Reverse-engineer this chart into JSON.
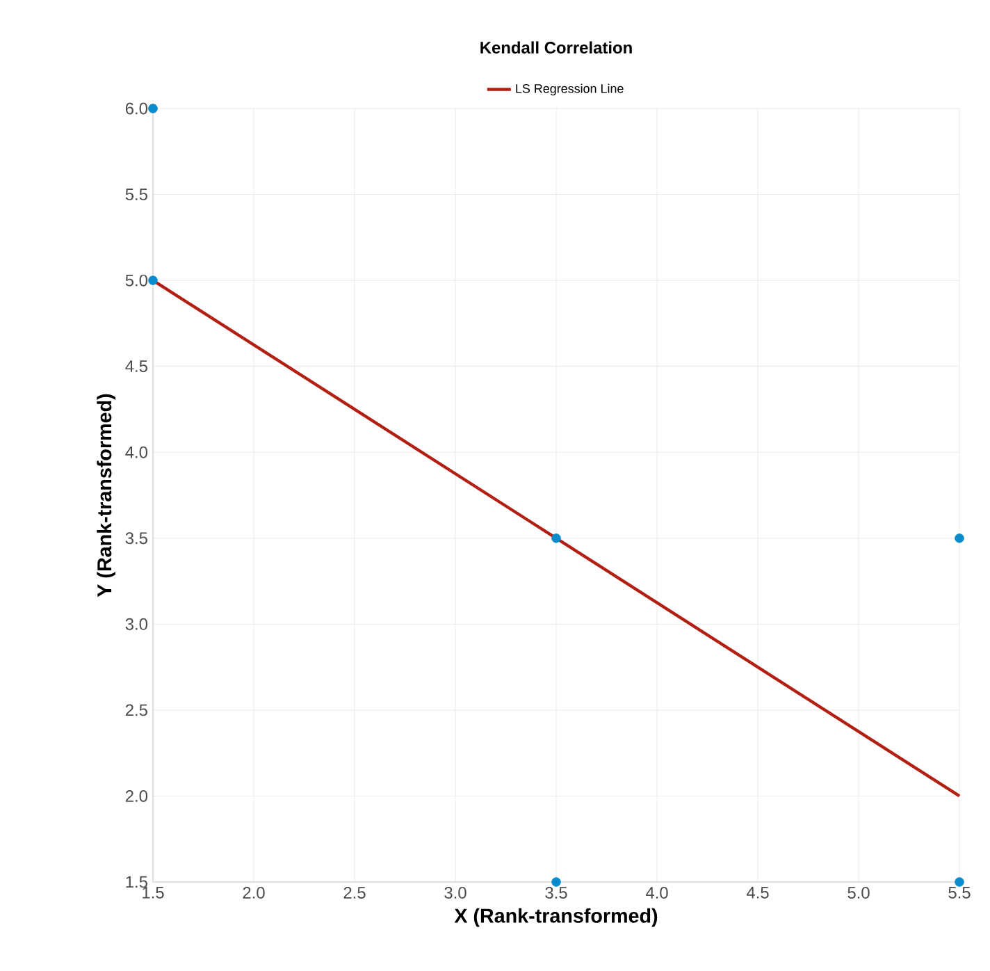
{
  "chart_data": {
    "type": "scatter",
    "title": "Kendall Correlation",
    "xlabel": "X (Rank-transformed)",
    "ylabel": "Y (Rank-transformed)",
    "xlim": [
      1.5,
      5.5
    ],
    "ylim": [
      1.5,
      6
    ],
    "xticks": [
      1.5,
      {
        "value": 2,
        "label": "2.0"
      },
      2.5,
      {
        "value": 3,
        "label": "3.0"
      },
      3.5,
      {
        "value": 4,
        "label": "4.0"
      },
      4.5,
      {
        "value": 5,
        "label": "5.0"
      },
      5.5
    ],
    "yticks": [
      1.5,
      {
        "value": 2,
        "label": "2.0"
      },
      2.5,
      {
        "value": 3,
        "label": "3.0"
      },
      3.5,
      {
        "value": 4,
        "label": "4.0"
      },
      4.5,
      {
        "value": 5,
        "label": "5.0"
      },
      5.5,
      {
        "value": 6,
        "label": "6.0"
      }
    ],
    "grid": true,
    "legend": "top",
    "series": [
      {
        "color": "#0a8ccc",
        "marker": "circle",
        "x": [
          1.5,
          1.5,
          3.5,
          3.5,
          5.5,
          5.5
        ],
        "values": [
          6,
          5,
          3.5,
          1.5,
          3.5,
          1.5
        ]
      },
      {
        "name": "LS Regression Line",
        "type": "line",
        "marker": "none",
        "color": "#b22014",
        "x": [
          1.5,
          5.5
        ],
        "values": [
          5,
          2
        ]
      }
    ]
  }
}
